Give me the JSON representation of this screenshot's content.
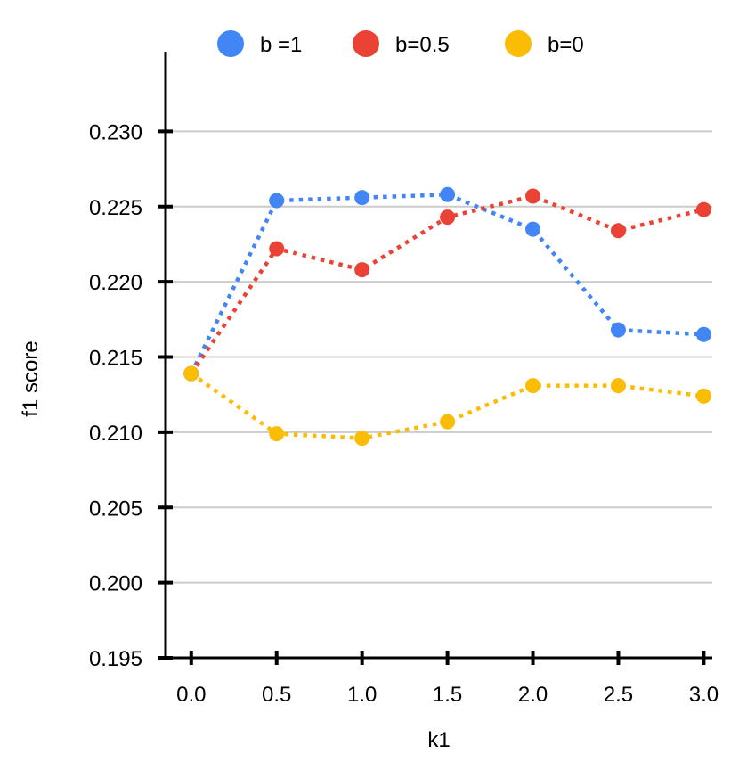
{
  "chart_data": {
    "type": "line",
    "x": [
      0.0,
      0.5,
      1.0,
      1.5,
      2.0,
      2.5,
      3.0
    ],
    "x_tick_labels": [
      "0.0",
      "0.5",
      "1.0",
      "1.5",
      "2.0",
      "2.5",
      "3.0"
    ],
    "y_tick_values": [
      0.195,
      0.2,
      0.205,
      0.21,
      0.215,
      0.22,
      0.225,
      0.23
    ],
    "y_tick_labels": [
      "0.195",
      "0.200",
      "0.205",
      "0.210",
      "0.215",
      "0.220",
      "0.225",
      "0.230"
    ],
    "xlabel": "k1",
    "ylabel": "f1 score",
    "xlim": [
      -0.15,
      3.05
    ],
    "ylim": [
      0.195,
      0.2353
    ],
    "grid": true,
    "legend_position": "top-center",
    "series": [
      {
        "name": "b =1",
        "color": "#4285F4",
        "values": [
          0.2139,
          0.2254,
          0.2256,
          0.2258,
          0.2235,
          0.2168,
          0.2165
        ]
      },
      {
        "name": "b=0.5",
        "color": "#EA4335",
        "values": [
          0.2139,
          0.2222,
          0.2208,
          0.2243,
          0.2257,
          0.2234,
          0.2248
        ]
      },
      {
        "name": "b=0",
        "color": "#FBBC04",
        "values": [
          0.2139,
          0.2099,
          0.2096,
          0.2107,
          0.2131,
          0.2131,
          0.2124
        ]
      }
    ]
  }
}
